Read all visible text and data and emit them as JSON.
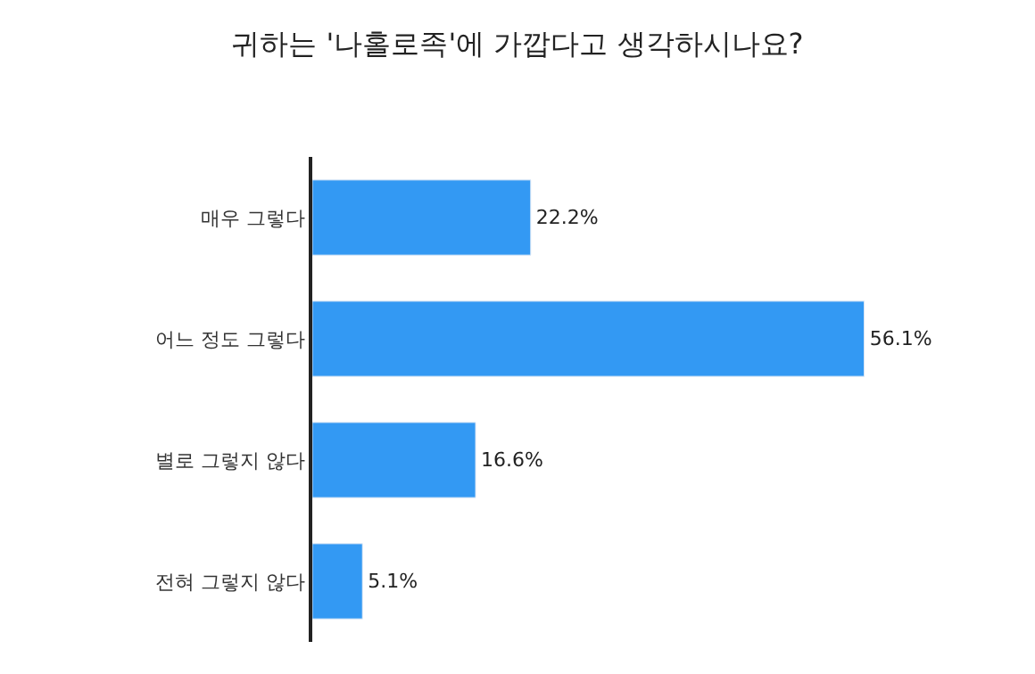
{
  "chart_data": {
    "type": "bar",
    "orientation": "horizontal",
    "title": "귀하는 '나홀로족'에 가깝다고 생각하시나요?",
    "categories": [
      "매우 그렇다",
      "어느 정도 그렇다",
      "별로 그렇지 않다",
      "전혀 그렇지 않다"
    ],
    "values": [
      22.2,
      56.1,
      16.6,
      5.1
    ],
    "value_labels": [
      "22.2%",
      "56.1%",
      "16.6%",
      "5.1%"
    ],
    "color": "#3399f3",
    "tick_labels": "y"
  }
}
